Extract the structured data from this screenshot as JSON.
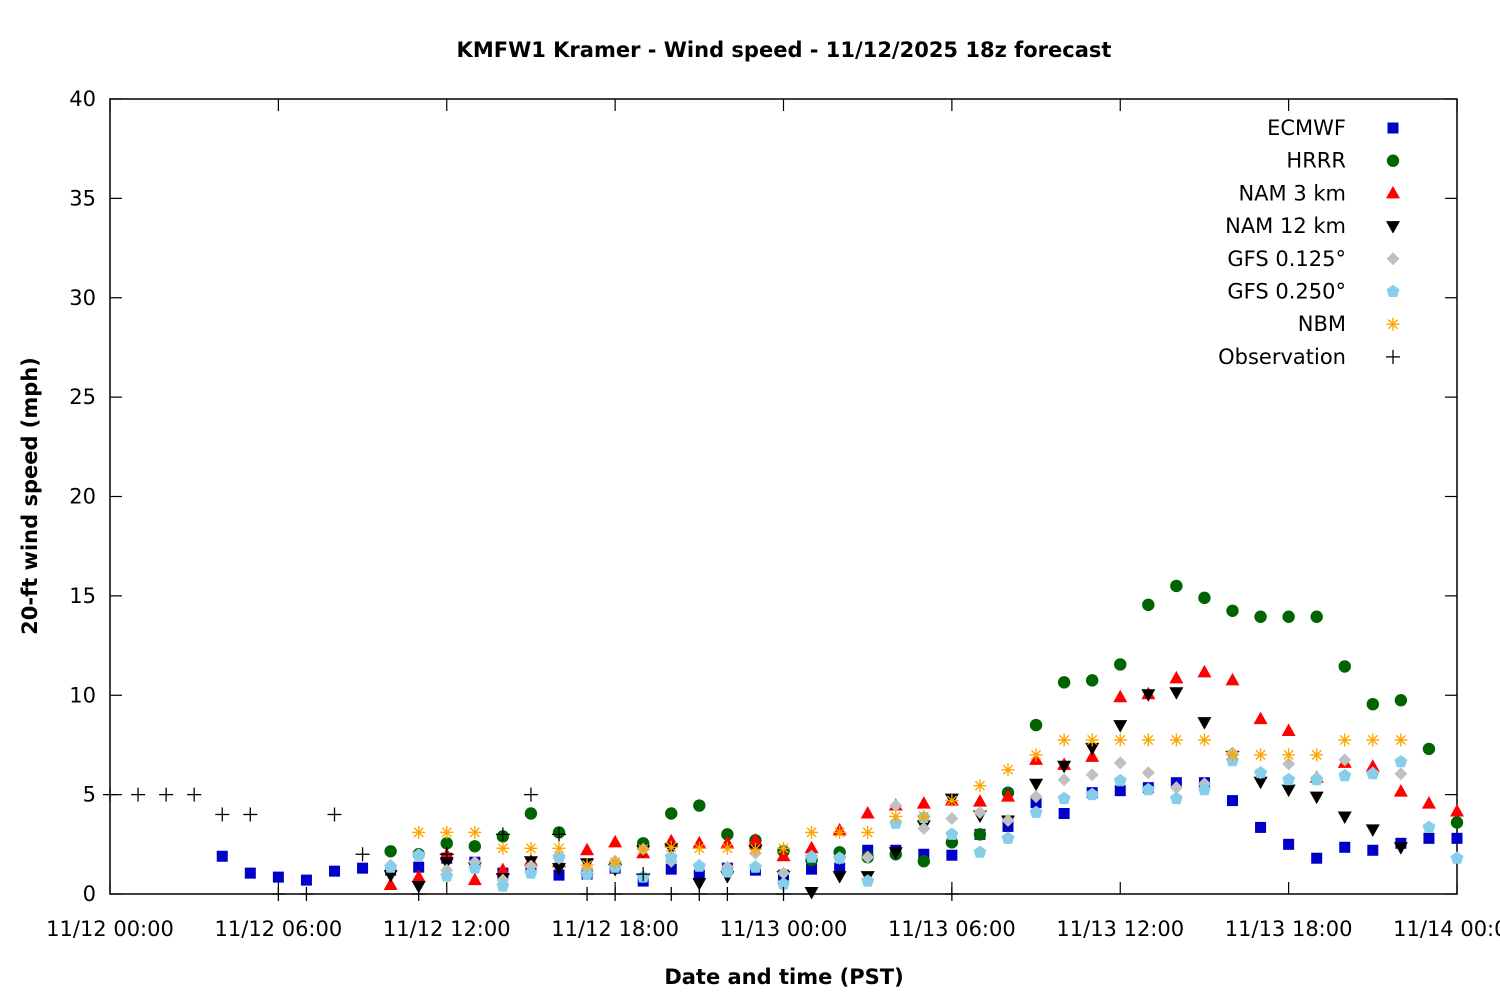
{
  "chart_data": {
    "type": "scatter",
    "title": "KMFW1 Kramer - Wind speed - 11/12/2025 18z forecast",
    "xlabel": "Date and time (PST)",
    "ylabel": "20-ft wind speed (mph)",
    "x_unit": "hours since 11/12 00:00",
    "xlim": [
      0,
      48
    ],
    "ylim": [
      0,
      40
    ],
    "yticks": [
      0,
      5,
      10,
      15,
      20,
      25,
      30,
      35,
      40
    ],
    "ytick_labels": [
      "0",
      "5",
      "10",
      "15",
      "20",
      "25",
      "30",
      "35",
      "40"
    ],
    "xticks": [
      0,
      6,
      12,
      18,
      24,
      30,
      36,
      42,
      48
    ],
    "xtick_labels": [
      "11/12 00:00",
      "11/12 06:00",
      "11/12 12:00",
      "11/12 18:00",
      "11/13 00:00",
      "11/13 06:00",
      "11/13 12:00",
      "11/13 18:00",
      "11/14 00:00"
    ],
    "grid": false,
    "legend_position": "top-right",
    "series": [
      {
        "name": "ECMWF",
        "marker": "square",
        "color": "#0000c8",
        "x": [
          4,
          5,
          6,
          7,
          8,
          9,
          10,
          11,
          12,
          13,
          14,
          15,
          16,
          17,
          18,
          19,
          20,
          21,
          22,
          23,
          24,
          25,
          26,
          27,
          28,
          29,
          30,
          31,
          32,
          33,
          34,
          35,
          36,
          37,
          38,
          39,
          40,
          41,
          42,
          43,
          44,
          45,
          46,
          47,
          48
        ],
        "y": [
          1.9,
          1.05,
          0.85,
          0.7,
          1.15,
          1.3,
          1.2,
          1.35,
          1.8,
          1.6,
          1.05,
          1.3,
          0.95,
          1.0,
          1.3,
          0.65,
          1.25,
          0.95,
          1.3,
          1.2,
          0.95,
          1.25,
          1.3,
          2.2,
          2.2,
          2.0,
          1.95,
          3.0,
          3.4,
          4.6,
          4.05,
          5.1,
          5.2,
          5.35,
          5.6,
          5.6,
          4.7,
          3.35,
          2.5,
          1.8,
          2.35,
          2.2,
          2.55,
          2.8,
          2.8
        ]
      },
      {
        "name": "HRRR",
        "marker": "circle",
        "color": "#006400",
        "x": [
          10,
          11,
          12,
          13,
          14,
          15,
          16,
          17,
          18,
          19,
          20,
          21,
          22,
          23,
          24,
          25,
          26,
          27,
          28,
          29,
          30,
          31,
          32,
          33,
          34,
          35,
          36,
          37,
          38,
          39,
          40,
          41,
          42,
          43,
          44,
          45,
          46,
          47,
          48
        ],
        "y": [
          2.15,
          2.0,
          2.55,
          2.4,
          2.9,
          4.05,
          3.1,
          1.05,
          1.5,
          2.55,
          4.05,
          4.45,
          3.0,
          2.7,
          2.15,
          1.7,
          2.1,
          1.85,
          2.0,
          1.65,
          2.6,
          3.0,
          5.1,
          8.5,
          10.65,
          10.75,
          11.55,
          14.55,
          15.5,
          14.9,
          14.25,
          13.95,
          13.95,
          13.95,
          11.45,
          9.55,
          9.75,
          7.3,
          3.6
        ]
      },
      {
        "name": "NAM 3 km",
        "marker": "triangle-up",
        "color": "#ff0000",
        "x": [
          10,
          11,
          12,
          13,
          14,
          15,
          16,
          17,
          18,
          19,
          20,
          21,
          22,
          23,
          24,
          25,
          26,
          27,
          28,
          29,
          30,
          31,
          32,
          33,
          34,
          35,
          36,
          37,
          38,
          39,
          40,
          41,
          42,
          43,
          44,
          45,
          46,
          47,
          48
        ],
        "y": [
          0.45,
          0.85,
          1.95,
          0.7,
          1.2,
          1.65,
          1.6,
          2.2,
          2.6,
          2.05,
          2.65,
          2.55,
          2.55,
          2.7,
          1.9,
          2.3,
          3.2,
          4.05,
          4.45,
          4.55,
          4.7,
          4.65,
          4.9,
          6.75,
          6.5,
          6.9,
          9.9,
          10.05,
          10.85,
          11.15,
          10.75,
          8.8,
          8.2,
          5.85,
          6.6,
          6.4,
          5.15,
          4.55,
          4.15
        ]
      },
      {
        "name": "NAM 12 km",
        "marker": "triangle-down",
        "color": "#000000",
        "x": [
          10,
          11,
          12,
          13,
          14,
          15,
          16,
          17,
          18,
          19,
          20,
          21,
          22,
          23,
          24,
          25,
          26,
          27,
          28,
          29,
          30,
          31,
          32,
          33,
          34,
          35,
          36,
          37,
          38,
          39,
          40,
          41,
          42,
          43,
          44,
          45,
          46
        ],
        "y": [
          0.95,
          0.4,
          1.6,
          1.35,
          0.8,
          1.65,
          1.3,
          1.55,
          1.25,
          2.2,
          2.3,
          0.55,
          0.9,
          2.2,
          0.9,
          0.1,
          0.9,
          0.9,
          2.1,
          3.45,
          4.8,
          3.95,
          3.7,
          5.55,
          6.45,
          7.35,
          8.5,
          10.05,
          10.15,
          8.65,
          6.95,
          5.65,
          5.25,
          4.9,
          3.9,
          3.25,
          2.35
        ]
      },
      {
        "name": "GFS 0.125°",
        "marker": "diamond",
        "color": "#c0c0c0",
        "x": [
          10,
          11,
          12,
          13,
          14,
          15,
          16,
          17,
          18,
          19,
          20,
          21,
          22,
          23,
          24,
          25,
          26,
          27,
          28,
          29,
          30,
          31,
          32,
          33,
          34,
          35,
          36,
          37,
          38,
          39,
          40,
          41,
          42,
          43,
          44,
          45,
          46
        ],
        "y": [
          1.45,
          1.95,
          1.2,
          1.6,
          0.7,
          1.4,
          1.8,
          1.3,
          1.65,
          2.25,
          1.65,
          1.45,
          1.35,
          2.05,
          1.05,
          1.9,
          1.8,
          1.85,
          4.45,
          3.3,
          3.8,
          4.1,
          3.7,
          4.9,
          5.75,
          6.0,
          6.6,
          6.1,
          5.35,
          5.55,
          7.1,
          6.1,
          6.55,
          5.85,
          6.75,
          6.1,
          6.05
        ]
      },
      {
        "name": "GFS 0.250°",
        "marker": "pentagon",
        "color": "#87ceeb",
        "x": [
          10,
          11,
          12,
          13,
          14,
          15,
          16,
          17,
          18,
          19,
          20,
          21,
          22,
          23,
          24,
          25,
          26,
          27,
          28,
          29,
          30,
          31,
          32,
          33,
          34,
          35,
          36,
          37,
          38,
          39,
          40,
          41,
          42,
          43,
          44,
          45,
          46,
          47,
          48
        ],
        "y": [
          1.35,
          1.95,
          0.9,
          1.3,
          0.4,
          1.05,
          1.85,
          1.0,
          1.35,
          0.85,
          1.85,
          1.4,
          1.1,
          1.35,
          0.5,
          1.85,
          1.8,
          0.65,
          3.55,
          3.85,
          3.0,
          2.1,
          2.8,
          4.1,
          4.8,
          5.0,
          5.7,
          5.25,
          4.8,
          5.25,
          6.7,
          6.1,
          5.75,
          5.75,
          5.95,
          6.05,
          6.65,
          3.35,
          1.8
        ]
      },
      {
        "name": "NBM",
        "marker": "asterisk",
        "color": "#ffa500",
        "x": [
          11,
          12,
          13,
          14,
          15,
          16,
          17,
          18,
          19,
          20,
          21,
          22,
          23,
          24,
          25,
          26,
          27,
          28,
          29,
          30,
          31,
          32,
          33,
          34,
          35,
          36,
          37,
          38,
          39,
          40,
          41,
          42,
          43,
          44,
          45,
          46
        ],
        "y": [
          3.1,
          3.1,
          3.1,
          2.3,
          2.3,
          2.3,
          1.45,
          1.6,
          2.25,
          2.35,
          2.3,
          2.3,
          2.25,
          2.3,
          3.1,
          3.1,
          3.1,
          3.9,
          3.9,
          4.7,
          5.45,
          6.25,
          7.0,
          7.75,
          7.75,
          7.75,
          7.75,
          7.75,
          7.75,
          7.0,
          7.0,
          7.0,
          7.0,
          7.75,
          7.75,
          7.75
        ]
      },
      {
        "name": "Observation",
        "marker": "plus",
        "color": "#000000",
        "x": [
          0,
          1,
          2,
          3,
          4,
          5,
          6,
          7,
          8,
          9,
          11,
          12,
          14,
          15,
          16,
          17,
          18,
          19,
          20,
          21,
          22,
          24,
          30
        ],
        "y": [
          5,
          5,
          5,
          5,
          4,
          4,
          0,
          0,
          4,
          2,
          0,
          2,
          3,
          5,
          3,
          0,
          0,
          1,
          0,
          0,
          0,
          0,
          0
        ]
      }
    ]
  }
}
